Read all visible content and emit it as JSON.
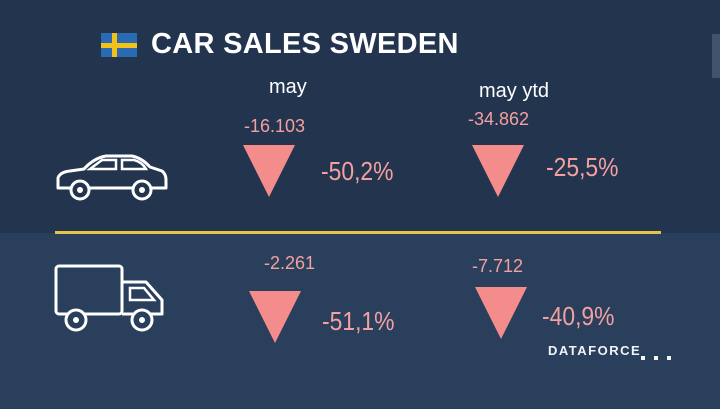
{
  "title": "CAR SALES SWEDEN",
  "flag": {
    "country": "Sweden",
    "colors": {
      "blue": "#2a6ab0",
      "yellow": "#f2c21b"
    }
  },
  "columns": {
    "may": "may",
    "may_ytd": "may ytd"
  },
  "rows": [
    {
      "icon": "car-icon",
      "may": {
        "units": "-16.103",
        "change": "-50,2%"
      },
      "may_ytd": {
        "units": "-34.862",
        "change": "-25,5%"
      }
    },
    {
      "icon": "truck-icon",
      "may": {
        "units": "-2.261",
        "change": "-51,1%"
      },
      "may_ytd": {
        "units": "-7.712",
        "change": "-40,9%"
      }
    }
  ],
  "brand": "DATAFORCE",
  "colors": {
    "negative": "#f3a0a0",
    "divider": "#e6c44a",
    "background": "#23344e"
  }
}
